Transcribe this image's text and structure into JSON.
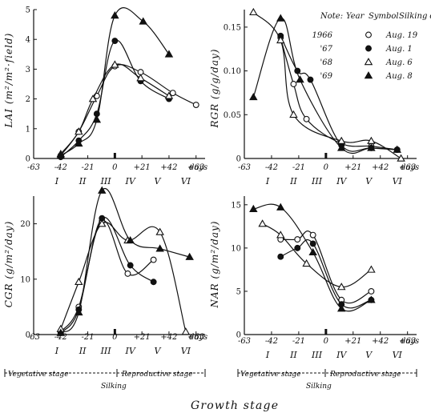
{
  "figure": {
    "xlabel": "Growth stage",
    "x_ticks": [
      "-63",
      "-42",
      "-21",
      "0",
      "+21",
      "+42",
      "+63"
    ],
    "x_unit": "days",
    "stages_roman": [
      "I",
      "II",
      "III",
      "IV",
      "V",
      "VI"
    ],
    "stage_labels": {
      "vegetative": "Vegetative stage",
      "reproductive": "Reproductive stage",
      "silking": "Silking"
    }
  },
  "legend": {
    "note": "Note:",
    "header_year": "Year",
    "header_symbol": "Symbol",
    "header_date": "Silking date",
    "rows": [
      {
        "year": "1966",
        "symbol": "open-circle",
        "date": "Aug. 19"
      },
      {
        "year": "'67",
        "symbol": "filled-circle",
        "date": "Aug. 1"
      },
      {
        "year": "'68",
        "symbol": "open-triangle",
        "date": "Aug. 6"
      },
      {
        "year": "'69",
        "symbol": "filled-triangle",
        "date": "Aug. 8"
      }
    ]
  },
  "chart_data": [
    {
      "type": "line",
      "ylabel": "LAI (m²/m²·field)",
      "xlim": [
        -63,
        70
      ],
      "ylim": [
        0,
        5
      ],
      "y_ticks": [
        "0",
        "1",
        "2",
        "3",
        "4",
        "5"
      ],
      "series": [
        {
          "name": "1966",
          "marker": "open-circle",
          "x": [
            -42,
            -28,
            -14,
            0,
            20,
            45,
            63
          ],
          "y": [
            0.1,
            0.9,
            2.1,
            3.1,
            2.9,
            2.2,
            1.8
          ]
        },
        {
          "name": "'67",
          "marker": "filled-circle",
          "x": [
            -42,
            -28,
            -14,
            0,
            20,
            42
          ],
          "y": [
            0.05,
            0.6,
            1.5,
            3.95,
            2.6,
            2.0
          ]
        },
        {
          "name": "'68",
          "marker": "open-triangle",
          "x": [
            -42,
            -28,
            -17,
            0,
            20,
            42
          ],
          "y": [
            0.15,
            0.9,
            2.0,
            3.15,
            2.7,
            2.1
          ]
        },
        {
          "name": "'69",
          "marker": "filled-triangle",
          "x": [
            -42,
            -28,
            -14,
            0,
            22,
            42
          ],
          "y": [
            0.1,
            0.5,
            1.3,
            4.8,
            4.6,
            3.5
          ]
        }
      ]
    },
    {
      "type": "line",
      "ylabel": "RGR (g/g/day)",
      "xlim": [
        -63,
        70
      ],
      "ylim": [
        0,
        0.17
      ],
      "y_ticks": [
        "0",
        "0.05",
        "0.10",
        "0.15"
      ],
      "series": [
        {
          "name": "1966",
          "marker": "open-circle",
          "x": [
            -35,
            -25,
            -15,
            12,
            35,
            55
          ],
          "y": [
            0.138,
            0.085,
            0.045,
            0.017,
            0.014,
            0.01
          ]
        },
        {
          "name": "'67",
          "marker": "filled-circle",
          "x": [
            -35,
            -22,
            -12,
            12,
            35,
            55
          ],
          "y": [
            0.14,
            0.1,
            0.09,
            0.015,
            0.012,
            0.01
          ]
        },
        {
          "name": "'68",
          "marker": "open-triangle",
          "x": [
            -56,
            -35,
            -25,
            12,
            35,
            58
          ],
          "y": [
            0.167,
            0.135,
            0.05,
            0.02,
            0.02,
            0.0
          ]
        },
        {
          "name": "'69",
          "marker": "filled-triangle",
          "x": [
            -56,
            -35,
            -20,
            12,
            35,
            55
          ],
          "y": [
            0.07,
            0.16,
            0.09,
            0.012,
            0.012,
            0.01
          ]
        }
      ]
    },
    {
      "type": "line",
      "ylabel": "CGR (g/m²/day)",
      "xlim": [
        -63,
        70
      ],
      "ylim": [
        0,
        25
      ],
      "y_ticks": [
        "0",
        "10",
        "20"
      ],
      "series": [
        {
          "name": "1966",
          "marker": "open-circle",
          "x": [
            -42,
            -28,
            -10,
            10,
            30
          ],
          "y": [
            0.5,
            5,
            20.5,
            11,
            13.5
          ]
        },
        {
          "name": "'67",
          "marker": "filled-circle",
          "x": [
            -42,
            -28,
            -10,
            12,
            30
          ],
          "y": [
            0.3,
            4.5,
            21,
            12.5,
            9.5
          ]
        },
        {
          "name": "'68",
          "marker": "open-triangle",
          "x": [
            -42,
            -28,
            -10,
            10,
            35,
            55
          ],
          "y": [
            1,
            9.5,
            20,
            17,
            18.5,
            0.5
          ]
        },
        {
          "name": "'69",
          "marker": "filled-triangle",
          "x": [
            -42,
            -28,
            -10,
            12,
            35,
            58
          ],
          "y": [
            0.3,
            4,
            26,
            17,
            15.5,
            14
          ]
        }
      ]
    },
    {
      "type": "line",
      "ylabel": "NAR (g/m²/day)",
      "xlim": [
        -63,
        70
      ],
      "ylim": [
        0,
        16
      ],
      "y_ticks": [
        "0",
        "5",
        "10",
        "15"
      ],
      "series": [
        {
          "name": "1966",
          "marker": "open-circle",
          "x": [
            -35,
            -22,
            -10,
            12,
            35
          ],
          "y": [
            11,
            11,
            11.5,
            4,
            5
          ]
        },
        {
          "name": "'67",
          "marker": "filled-circle",
          "x": [
            -35,
            -22,
            -10,
            12,
            35
          ],
          "y": [
            9,
            10,
            10.5,
            3.5,
            4
          ]
        },
        {
          "name": "'68",
          "marker": "open-triangle",
          "x": [
            -49,
            -35,
            -15,
            12,
            35
          ],
          "y": [
            12.8,
            11.5,
            8.2,
            5.5,
            7.5
          ]
        },
        {
          "name": "'69",
          "marker": "filled-triangle",
          "x": [
            -56,
            -35,
            -10,
            12,
            35
          ],
          "y": [
            14.5,
            14.7,
            9.5,
            3,
            4
          ]
        }
      ]
    }
  ]
}
